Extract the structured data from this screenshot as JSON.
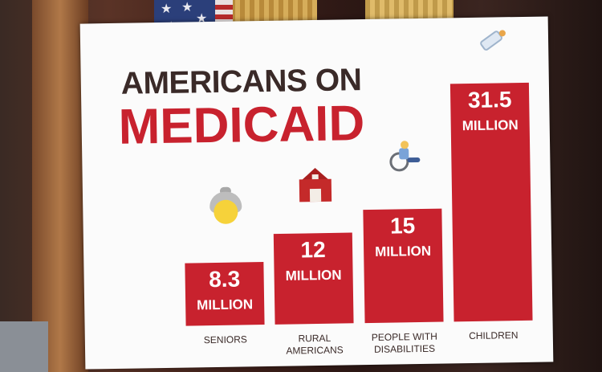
{
  "board": {
    "title_line1": "AMERICANS ON",
    "title_line2": "MEDICAID"
  },
  "colors": {
    "bar": "#c8222e",
    "title_dark": "#3a2a28",
    "title_red": "#c8222e",
    "board": "#fbfbfb"
  },
  "icons": [
    "grandmother-icon",
    "barn-icon",
    "wheelchair-user-icon",
    "baby-bottle-icon"
  ],
  "chart_data": {
    "type": "bar",
    "categories": [
      [
        "SENIORS"
      ],
      [
        "RURAL",
        "AMERICANS"
      ],
      [
        "PEOPLE WITH",
        "DISABILITIES"
      ],
      [
        "CHILDREN"
      ]
    ],
    "values": [
      8.3,
      12,
      15,
      31.5
    ],
    "value_labels": [
      [
        "8.3",
        "MILLION"
      ],
      [
        "12",
        "MILLION"
      ],
      [
        "15",
        "MILLION"
      ],
      [
        "31.5",
        "MILLION"
      ]
    ],
    "unit": "MILLION",
    "title": "AMERICANS ON MEDICAID",
    "xlabel": "",
    "ylabel": "",
    "grid": false,
    "legend": "none"
  }
}
